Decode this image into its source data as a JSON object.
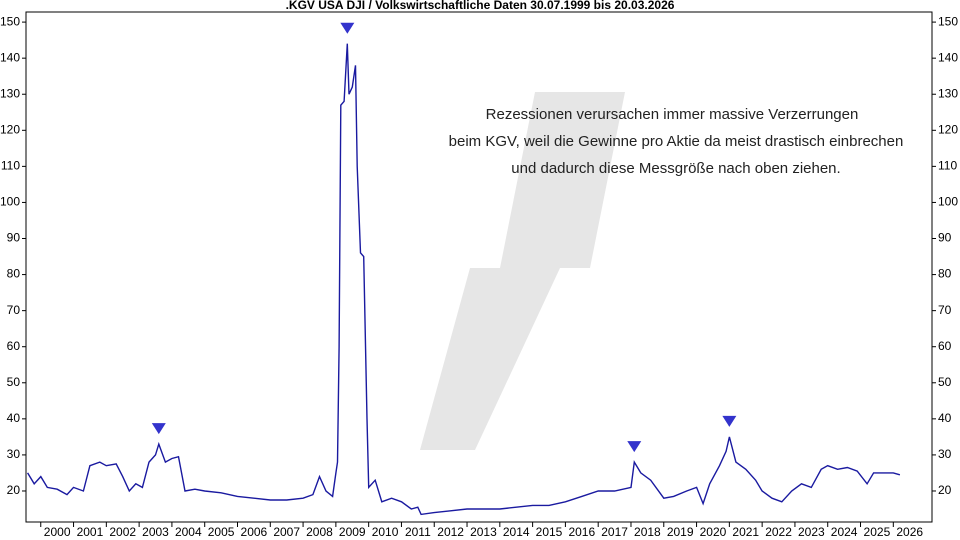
{
  "chart_data": {
    "type": "line",
    "title": ".KGV USA DJI / Volkswirtschaftliche Daten 30.07.1999 bis 20.03.2026",
    "annotation": [
      "Rezessionen verursachen immer massive Verzerrungen",
      "beim KGV, weil die Gewinne pro Aktie da meist drastisch einbrechen",
      "und dadurch diese Messgröße nach oben ziehen."
    ],
    "color": "#1a1aa0",
    "marker_color": "#3333cc",
    "markers": [
      2003.6,
      2009.35,
      2018.1,
      2021.0
    ],
    "x": [
      1999.6,
      1999.8,
      2000.0,
      2000.2,
      2000.5,
      2000.8,
      2001.0,
      2001.3,
      2001.5,
      2001.8,
      2002.0,
      2002.3,
      2002.5,
      2002.7,
      2002.9,
      2003.1,
      2003.3,
      2003.5,
      2003.6,
      2003.8,
      2004.0,
      2004.2,
      2004.4,
      2004.7,
      2005.0,
      2005.5,
      2006.0,
      2006.5,
      2007.0,
      2007.5,
      2008.0,
      2008.3,
      2008.5,
      2008.7,
      2008.9,
      2009.0,
      2009.05,
      2009.1,
      2009.15,
      2009.25,
      2009.35,
      2009.4,
      2009.5,
      2009.6,
      2009.65,
      2009.75,
      2009.85,
      2009.95,
      2010.0,
      2010.2,
      2010.4,
      2010.7,
      2011.0,
      2011.3,
      2011.5,
      2011.6,
      2012.0,
      2012.5,
      2013.0,
      2013.5,
      2014.0,
      2014.5,
      2015.0,
      2015.5,
      2016.0,
      2016.5,
      2017.0,
      2017.5,
      2018.0,
      2018.1,
      2018.3,
      2018.6,
      2019.0,
      2019.3,
      2019.7,
      2020.0,
      2020.2,
      2020.4,
      2020.7,
      2020.9,
      2021.0,
      2021.2,
      2021.5,
      2021.8,
      2022.0,
      2022.3,
      2022.6,
      2022.9,
      2023.2,
      2023.5,
      2023.8,
      2024.0,
      2024.3,
      2024.6,
      2024.9,
      2025.2,
      2025.4,
      2025.7,
      2026.0,
      2026.2
    ],
    "values": [
      25,
      22,
      24,
      21,
      20.5,
      19,
      21,
      20,
      27,
      28,
      27,
      27.5,
      24,
      20,
      22,
      21,
      28,
      30,
      33,
      28,
      29,
      29.5,
      20,
      20.5,
      20,
      19.5,
      18.5,
      18,
      17.5,
      17.5,
      18,
      19,
      24,
      20,
      18.5,
      25,
      28,
      60,
      127,
      128,
      144,
      130,
      132,
      138,
      110,
      86,
      85,
      40,
      21,
      23,
      17,
      18,
      17,
      15,
      15.5,
      13.5,
      14,
      14.5,
      15,
      15,
      15,
      15.5,
      16,
      16,
      17,
      18.5,
      20,
      20,
      21,
      28,
      25,
      23,
      18,
      18.5,
      20,
      21,
      16.5,
      22,
      27,
      31,
      35,
      28,
      26,
      23,
      20,
      18,
      17,
      20,
      22,
      21,
      26,
      27,
      26,
      26.5,
      25.5,
      22,
      25,
      25,
      25,
      24.5
    ],
    "xlim": [
      1999.55,
      2027.18
    ],
    "xticks": [
      2000,
      2001,
      2002,
      2003,
      2004,
      2005,
      2006,
      2007,
      2008,
      2009,
      2010,
      2011,
      2012,
      2013,
      2014,
      2015,
      2016,
      2017,
      2018,
      2019,
      2020,
      2021,
      2022,
      2023,
      2024,
      2025,
      2026
    ],
    "ylim": [
      11.4,
      152.8
    ],
    "yticks": [
      20,
      30,
      40,
      50,
      60,
      70,
      80,
      90,
      100,
      110,
      120,
      130,
      140,
      150
    ]
  }
}
